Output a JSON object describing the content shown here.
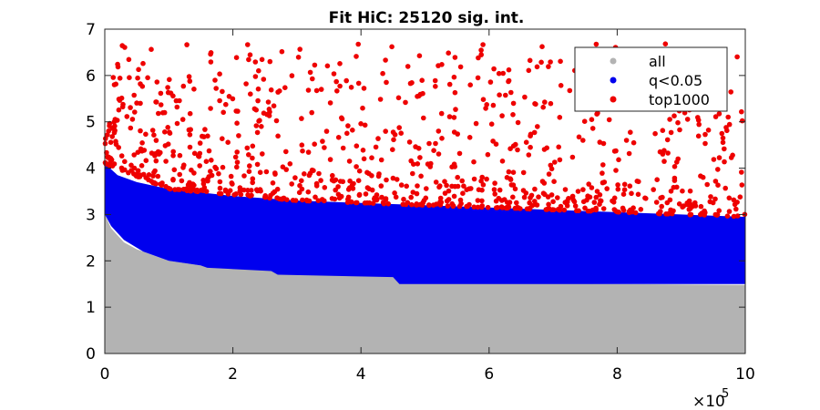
{
  "chart_data": {
    "type": "scatter",
    "title": "Fit HiC: 25120 sig. int.",
    "xlabel": "",
    "ylabel": "",
    "xlim": [
      0,
      1000000
    ],
    "ylim": [
      0,
      7
    ],
    "x_ticks": [
      0,
      200000,
      400000,
      600000,
      800000,
      1000000
    ],
    "x_tick_labels": [
      "0",
      "2",
      "4",
      "6",
      "8",
      "10"
    ],
    "x_exponent_label": "×10",
    "x_exponent_power": "5",
    "y_ticks": [
      0,
      1,
      2,
      3,
      4,
      5,
      6,
      7
    ],
    "y_tick_labels": [
      "0",
      "1",
      "2",
      "3",
      "4",
      "5",
      "6",
      "7"
    ],
    "grid": false,
    "legend_position": "top-right",
    "series": [
      {
        "name": "all",
        "color": "#b3b3b3",
        "shape": "area",
        "description_points": [
          [
            0,
            3.0
          ],
          [
            5000,
            2.85
          ],
          [
            10000,
            2.7
          ],
          [
            20000,
            2.55
          ],
          [
            30000,
            2.4
          ],
          [
            50000,
            2.25
          ],
          [
            80000,
            2.1
          ],
          [
            100000,
            2.0
          ],
          [
            150000,
            1.9
          ],
          [
            200000,
            1.85
          ],
          [
            260000,
            1.8
          ],
          [
            300000,
            1.75
          ],
          [
            350000,
            1.72
          ],
          [
            450000,
            1.68
          ],
          [
            460000,
            1.55
          ],
          [
            600000,
            1.52
          ],
          [
            800000,
            1.5
          ],
          [
            1000000,
            1.48
          ]
        ]
      },
      {
        "name": "q<0.05",
        "color": "#0000ee",
        "shape": "band",
        "lower": [
          [
            0,
            3.0
          ],
          [
            10000,
            2.75
          ],
          [
            30000,
            2.45
          ],
          [
            60000,
            2.2
          ],
          [
            100000,
            2.0
          ],
          [
            150000,
            1.9
          ],
          [
            160000,
            1.85
          ],
          [
            260000,
            1.78
          ],
          [
            270000,
            1.7
          ],
          [
            450000,
            1.65
          ],
          [
            460000,
            1.5
          ],
          [
            1000000,
            1.5
          ]
        ],
        "upper": [
          [
            0,
            4.1
          ],
          [
            20000,
            3.85
          ],
          [
            50000,
            3.7
          ],
          [
            100000,
            3.55
          ],
          [
            200000,
            3.4
          ],
          [
            300000,
            3.3
          ],
          [
            400000,
            3.25
          ],
          [
            500000,
            3.2
          ],
          [
            600000,
            3.15
          ],
          [
            700000,
            3.1
          ],
          [
            800000,
            3.05
          ],
          [
            900000,
            3.0
          ],
          [
            1000000,
            2.95
          ]
        ]
      },
      {
        "name": "top1000",
        "color": "#ee0000",
        "shape": "markers",
        "lower_boundary": [
          [
            0,
            4.1
          ],
          [
            100000,
            3.55
          ],
          [
            300000,
            3.3
          ],
          [
            500000,
            3.2
          ],
          [
            700000,
            3.1
          ],
          [
            1000000,
            2.95
          ]
        ],
        "max_y": 6.7
      }
    ]
  }
}
